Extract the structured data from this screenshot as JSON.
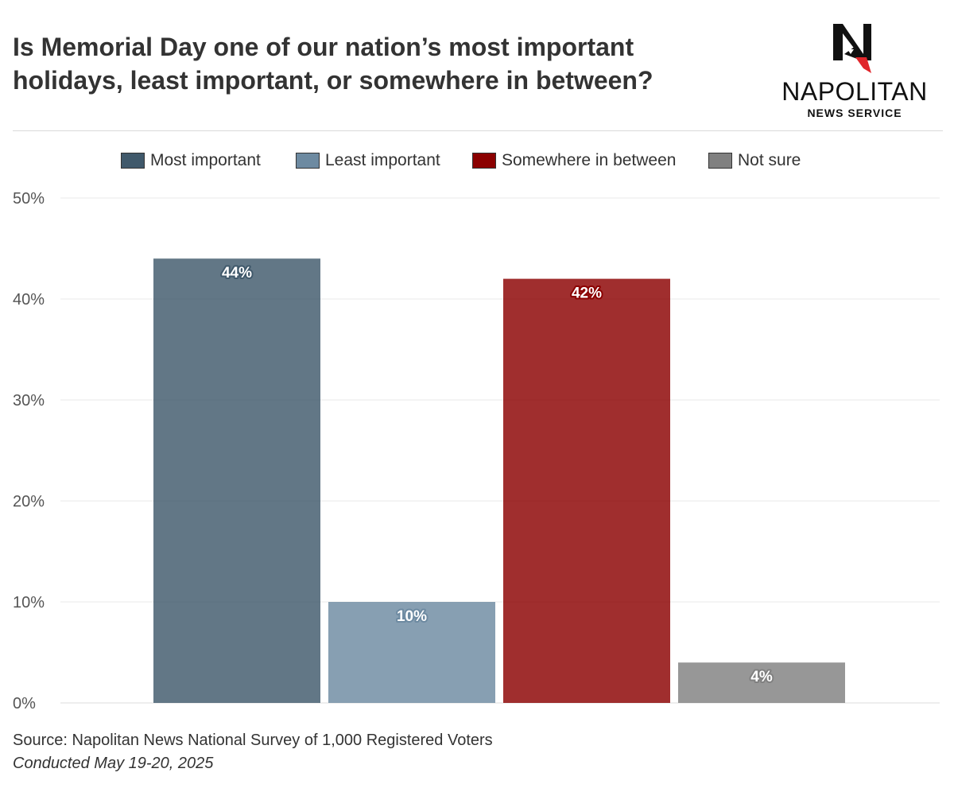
{
  "header": {
    "title_line1": "Is Memorial Day one of our nation’s most important",
    "title_line2": "holidays, least important, or somewhere in between?"
  },
  "logo": {
    "icon": "napolitan-n-eagle-logo",
    "name": "NAPOLITAN",
    "subtitle": "NEWS SERVICE"
  },
  "chart_data": {
    "type": "bar",
    "title": "Is Memorial Day one of our nation’s most important holidays, least important, or somewhere in between?",
    "xlabel": "",
    "ylabel": "",
    "ylim": [
      0,
      50
    ],
    "yticks": [
      0,
      10,
      20,
      30,
      40,
      50
    ],
    "ytick_labels": [
      "0%",
      "10%",
      "20%",
      "30%",
      "40%",
      "50%"
    ],
    "grid": true,
    "legend_position": "top-center",
    "series": [
      {
        "name": "Most important",
        "value": 44,
        "label": "44%",
        "color": "#40596b"
      },
      {
        "name": "Least important",
        "value": 10,
        "label": "10%",
        "color": "#6d8aa1"
      },
      {
        "name": "Somewhere in between",
        "value": 42,
        "label": "42%",
        "color": "#8b0000"
      },
      {
        "name": "Not sure",
        "value": 4,
        "label": "4%",
        "color": "#808080"
      }
    ]
  },
  "footer": {
    "source": "Source: Napolitan News National Survey of 1,000 Registered Voters",
    "conducted": "Conducted May 19-20, 2025"
  }
}
